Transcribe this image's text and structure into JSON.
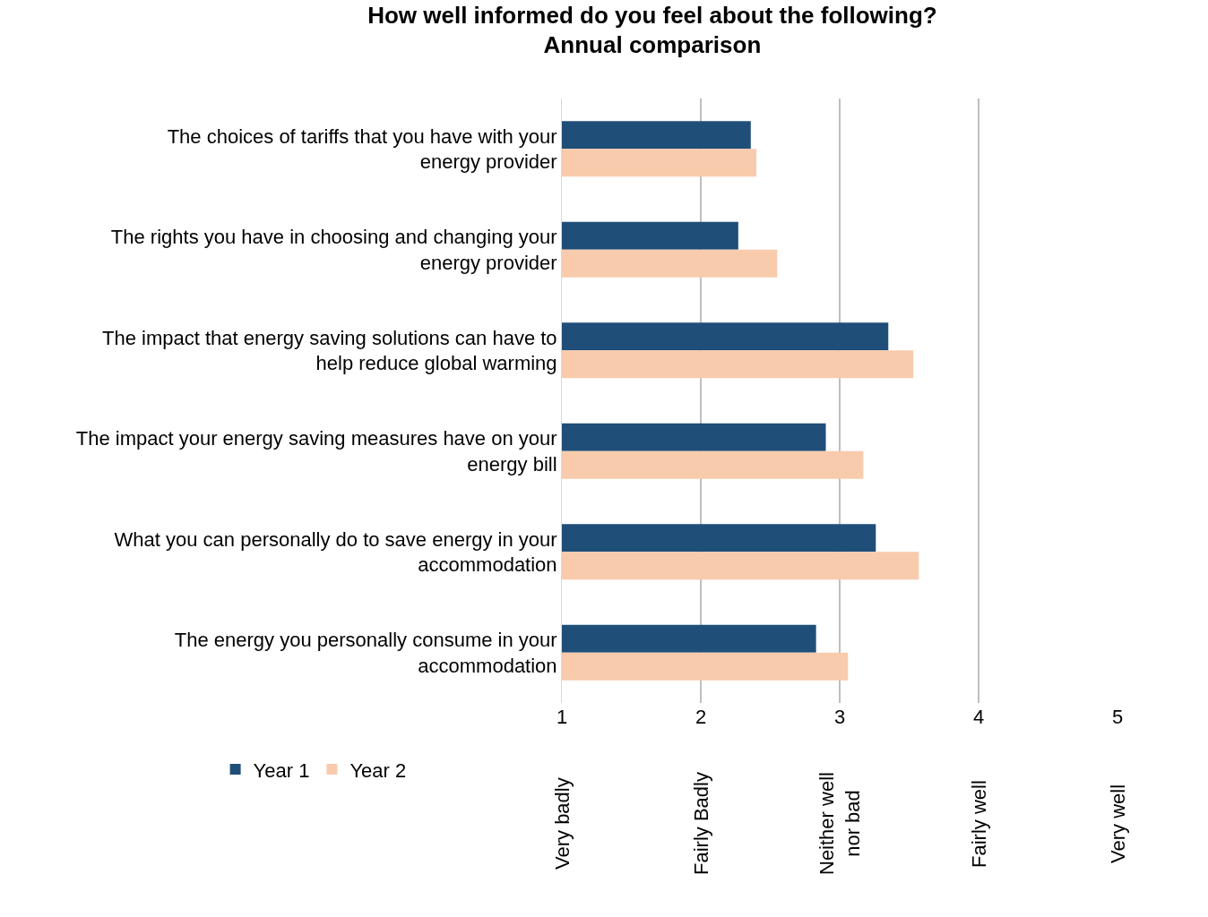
{
  "chart_data": {
    "type": "bar",
    "orientation": "horizontal",
    "title": "How well informed do you feel about the following?\nAnnual comparison",
    "categories": [
      "The choices of tariffs that you have with your energy provider",
      "The rights you have in choosing and changing your energy provider",
      "The impact that energy saving solutions can have to help reduce global warming",
      "The impact your energy saving measures have on your energy bill",
      "What you can personally do to save energy in your accommodation",
      "The energy you personally consume in your accommodation"
    ],
    "series": [
      {
        "name": "Year 1",
        "color": "#1f4e79",
        "values": [
          2.36,
          2.27,
          3.35,
          2.9,
          3.26,
          2.83
        ]
      },
      {
        "name": "Year 2",
        "color": "#f8cbad",
        "values": [
          2.4,
          2.55,
          3.53,
          3.17,
          3.57,
          3.06
        ]
      }
    ],
    "xlim": [
      1,
      5
    ],
    "xticks": [
      1,
      2,
      3,
      4,
      5
    ],
    "annotations": [
      "Very badly",
      "Fairly Badly",
      "Neither well nor bad",
      "Fairly well",
      "Very well"
    ],
    "grid": "x",
    "legend": "bottom left"
  }
}
